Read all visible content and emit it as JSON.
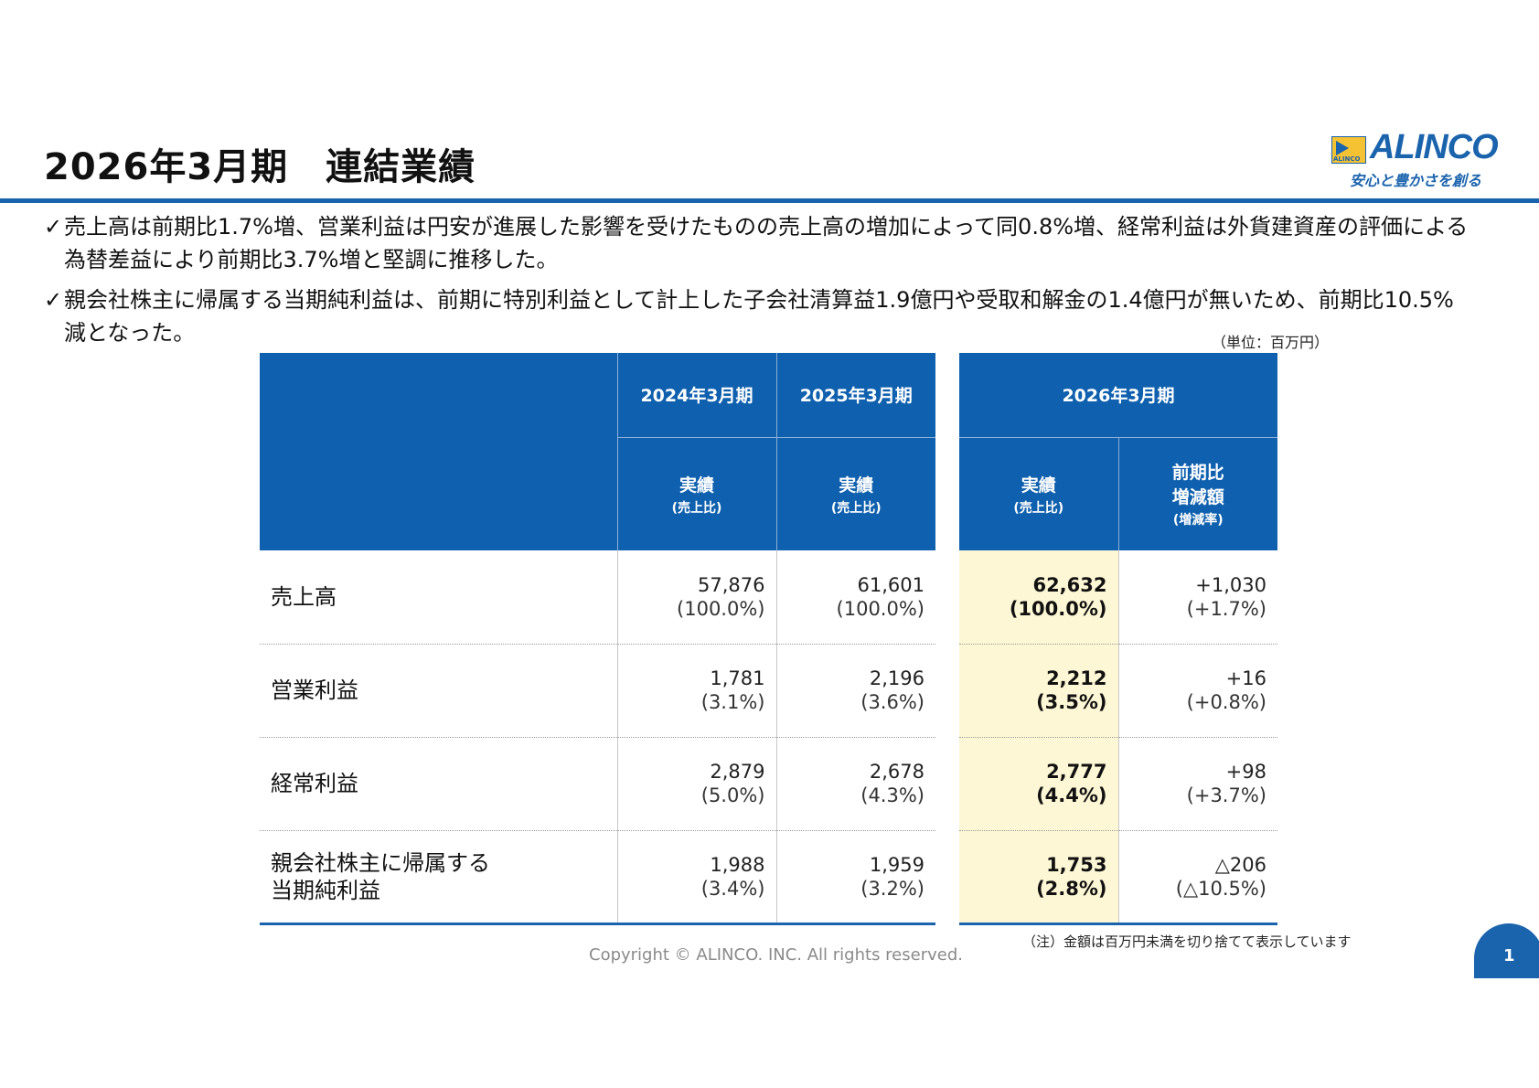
{
  "header": {
    "title": "2026年3月期　連結業績",
    "logo_name": "ALINCO",
    "logo_sub": "ALINCO",
    "logo_slogan": "安心と豊かさを創る"
  },
  "bullets": [
    "売上高は前期比1.7%増、営業利益は円安が進展した影響を受けたものの売上高の増加によって同0.8%増、経常利益は外貨建資産の評価による為替差益により前期比3.7%増と堅調に推移した。",
    "親会社株主に帰属する当期純利益は、前期に特別利益として計上した子会社清算益1.9億円や受取和解金の1.4億円が無いため、前期比10.5%減となった。"
  ],
  "check_mark": "✓",
  "unit_note": "（単位：百万円）",
  "table": {
    "periods": [
      "2024年3月期",
      "2025年3月期",
      "2026年3月期"
    ],
    "actual_label": "実績",
    "actual_sub": "(売上比)",
    "change_label_1": "前期比",
    "change_label_2": "増減額",
    "change_sub": "(増減率)",
    "rows": [
      {
        "label": "売上高",
        "label2": "",
        "v2024": "57,876",
        "p2024": "(100.0%)",
        "v2025": "61,601",
        "p2025": "(100.0%)",
        "v2026": "62,632",
        "p2026": "(100.0%)",
        "chg": "+1,030",
        "chg_rate": "(+1.7%)"
      },
      {
        "label": "営業利益",
        "label2": "",
        "v2024": "1,781",
        "p2024": "(3.1%)",
        "v2025": "2,196",
        "p2025": "(3.6%)",
        "v2026": "2,212",
        "p2026": "(3.5%)",
        "chg": "+16",
        "chg_rate": "(+0.8%)"
      },
      {
        "label": "経常利益",
        "label2": "",
        "v2024": "2,879",
        "p2024": "(5.0%)",
        "v2025": "2,678",
        "p2025": "(4.3%)",
        "v2026": "2,777",
        "p2026": "(4.4%)",
        "chg": "+98",
        "chg_rate": "(+3.7%)"
      },
      {
        "label": "親会社株主に帰属する",
        "label2": "当期純利益",
        "v2024": "1,988",
        "p2024": "(3.4%)",
        "v2025": "1,959",
        "p2025": "(3.2%)",
        "v2026": "1,753",
        "p2026": "(2.8%)",
        "chg": "△206",
        "chg_rate": "(△10.5%)"
      }
    ]
  },
  "footnote": "（注）金額は百万円未満を切り捨てて表示しています",
  "copyright": "Copyright © ALINCO. INC. All rights reserved.",
  "page_number": "1",
  "colors": {
    "brand_blue": "#1a63ad",
    "header_blue": "#0f60ae",
    "highlight": "#fef7d5",
    "logo_yellow": "#f4c233"
  }
}
